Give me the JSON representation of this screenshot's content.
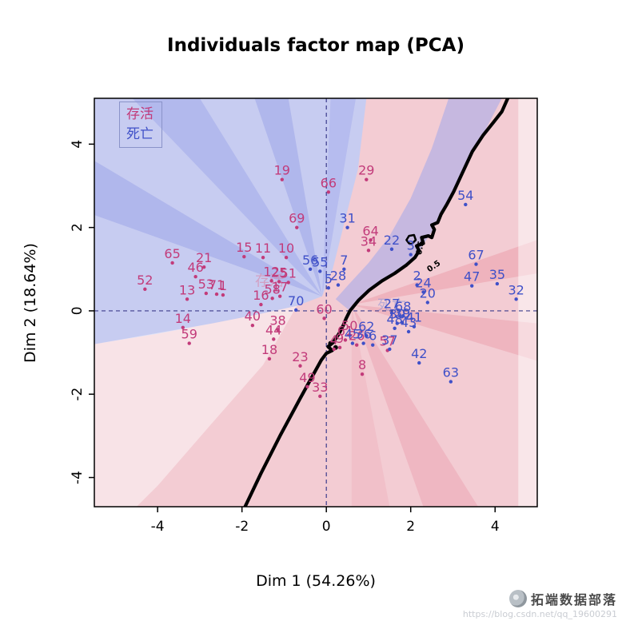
{
  "title": "Individuals factor map (PCA)",
  "axes": {
    "x_label": "Dim 1 (54.26%)",
    "y_label": "Dim 2 (18.64%)",
    "x_ticks": [
      -4,
      -2,
      0,
      2,
      4
    ],
    "y_ticks": [
      -4,
      -2,
      0,
      2,
      4
    ]
  },
  "legend": {
    "items": [
      {
        "label": "存活",
        "color": "#c23b7a"
      },
      {
        "label": "死亡",
        "color": "#3f50c8"
      }
    ]
  },
  "watermark": {
    "brand": "拓端数据部落",
    "url": "https://blog.csdn.net/qq_19600291"
  },
  "chart_data": {
    "type": "scatter",
    "title": "Individuals factor map (PCA)",
    "xlabel": "Dim 1 (54.26%)",
    "ylabel": "Dim 2 (18.64%)",
    "xlim": [
      -5.5,
      5.0
    ],
    "ylim": [
      -4.7,
      5.1
    ],
    "grid": false,
    "plot_background": "#f3ccd3",
    "crosshair_color": "#3c3c8c",
    "boundary_color": "#000000",
    "classes": [
      {
        "name": "存活",
        "color": "#c23b7a"
      },
      {
        "name": "死亡",
        "color": "#3f50c8"
      }
    ],
    "points": [
      {
        "label": "1",
        "x": -2.45,
        "y": 0.38,
        "class": "存活"
      },
      {
        "label": "4",
        "x": 0.18,
        "y": -0.92,
        "class": "存活"
      },
      {
        "label": "8",
        "x": 0.85,
        "y": -1.52,
        "class": "存活"
      },
      {
        "label": "9",
        "x": 0.32,
        "y": -0.88,
        "class": "存活"
      },
      {
        "label": "10",
        "x": -0.95,
        "y": 1.28,
        "class": "存活"
      },
      {
        "label": "11",
        "x": -1.5,
        "y": 1.28,
        "class": "存活"
      },
      {
        "label": "12",
        "x": -1.3,
        "y": 0.72,
        "class": "存活"
      },
      {
        "label": "13",
        "x": -3.3,
        "y": 0.28,
        "class": "存活"
      },
      {
        "label": "14",
        "x": -3.4,
        "y": -0.4,
        "class": "存活"
      },
      {
        "label": "15",
        "x": -1.95,
        "y": 1.3,
        "class": "存活"
      },
      {
        "label": "16",
        "x": -1.55,
        "y": 0.15,
        "class": "存活"
      },
      {
        "label": "17",
        "x": -1.1,
        "y": 0.35,
        "class": "存活"
      },
      {
        "label": "18",
        "x": -1.35,
        "y": -1.15,
        "class": "存活"
      },
      {
        "label": "19",
        "x": -1.05,
        "y": 3.15,
        "class": "存活"
      },
      {
        "label": "21",
        "x": -2.9,
        "y": 1.05,
        "class": "存活"
      },
      {
        "label": "23",
        "x": -0.62,
        "y": -1.32,
        "class": "存活"
      },
      {
        "label": "25",
        "x": -1.12,
        "y": 0.7,
        "class": "存活"
      },
      {
        "label": "26",
        "x": 0.72,
        "y": -0.82,
        "class": "存活"
      },
      {
        "label": "29",
        "x": 0.95,
        "y": 3.15,
        "class": "存活"
      },
      {
        "label": "33",
        "x": -0.15,
        "y": -2.05,
        "class": "存活"
      },
      {
        "label": "34",
        "x": 1.0,
        "y": 1.45,
        "class": "存活"
      },
      {
        "label": "38",
        "x": -1.15,
        "y": -0.45,
        "class": "存活"
      },
      {
        "label": "40",
        "x": -1.75,
        "y": -0.35,
        "class": "存活"
      },
      {
        "label": "44",
        "x": -1.25,
        "y": -0.68,
        "class": "存活"
      },
      {
        "label": "46",
        "x": -3.1,
        "y": 0.82,
        "class": "存活"
      },
      {
        "label": "49",
        "x": -0.45,
        "y": -1.82,
        "class": "存活"
      },
      {
        "label": "50",
        "x": 0.55,
        "y": -0.58,
        "class": "存活"
      },
      {
        "label": "51",
        "x": -0.9,
        "y": 0.68,
        "class": "存活"
      },
      {
        "label": "52",
        "x": -4.3,
        "y": 0.52,
        "class": "存活"
      },
      {
        "label": "53",
        "x": -2.85,
        "y": 0.42,
        "class": "存活"
      },
      {
        "label": "57",
        "x": 1.45,
        "y": -0.95,
        "class": "存活"
      },
      {
        "label": "58",
        "x": -1.28,
        "y": 0.3,
        "class": "存活"
      },
      {
        "label": "59",
        "x": -3.25,
        "y": -0.78,
        "class": "存活"
      },
      {
        "label": "60",
        "x": -0.05,
        "y": -0.18,
        "class": "存活"
      },
      {
        "label": "61",
        "x": 0.45,
        "y": -0.7,
        "class": "存活"
      },
      {
        "label": "64",
        "x": 1.05,
        "y": 1.7,
        "class": "存活"
      },
      {
        "label": "65",
        "x": -3.65,
        "y": 1.15,
        "class": "存活"
      },
      {
        "label": "66",
        "x": 0.05,
        "y": 2.85,
        "class": "存活"
      },
      {
        "label": "69",
        "x": -0.7,
        "y": 2.0,
        "class": "存活"
      },
      {
        "label": "71",
        "x": -2.6,
        "y": 0.4,
        "class": "存活"
      },
      {
        "label": "2",
        "x": 2.15,
        "y": 0.62,
        "class": "死亡"
      },
      {
        "label": "3",
        "x": 2.0,
        "y": 1.35,
        "class": "死亡"
      },
      {
        "label": "5",
        "x": 0.05,
        "y": 0.55,
        "class": "死亡"
      },
      {
        "label": "6",
        "x": 1.1,
        "y": -0.82,
        "class": "死亡"
      },
      {
        "label": "7",
        "x": 0.42,
        "y": 1.0,
        "class": "死亡"
      },
      {
        "label": "20",
        "x": 2.4,
        "y": 0.2,
        "class": "死亡"
      },
      {
        "label": "22",
        "x": 1.55,
        "y": 1.48,
        "class": "死亡"
      },
      {
        "label": "24",
        "x": 2.3,
        "y": 0.45,
        "class": "死亡"
      },
      {
        "label": "27",
        "x": 1.55,
        "y": -0.05,
        "class": "死亡"
      },
      {
        "label": "28",
        "x": 0.28,
        "y": 0.62,
        "class": "死亡"
      },
      {
        "label": "30",
        "x": 1.68,
        "y": -0.3,
        "class": "死亡"
      },
      {
        "label": "31",
        "x": 0.5,
        "y": 2.0,
        "class": "死亡"
      },
      {
        "label": "32",
        "x": 4.5,
        "y": 0.28,
        "class": "死亡"
      },
      {
        "label": "35",
        "x": 4.05,
        "y": 0.65,
        "class": "死亡"
      },
      {
        "label": "36",
        "x": 0.88,
        "y": -0.78,
        "class": "死亡"
      },
      {
        "label": "37",
        "x": 1.5,
        "y": -0.92,
        "class": "死亡"
      },
      {
        "label": "39",
        "x": 1.8,
        "y": -0.28,
        "class": "死亡"
      },
      {
        "label": "41",
        "x": 2.08,
        "y": -0.38,
        "class": "死亡"
      },
      {
        "label": "42",
        "x": 2.2,
        "y": -1.25,
        "class": "死亡"
      },
      {
        "label": "43",
        "x": 1.95,
        "y": -0.5,
        "class": "死亡"
      },
      {
        "label": "45",
        "x": 0.62,
        "y": -0.78,
        "class": "死亡"
      },
      {
        "label": "47",
        "x": 3.45,
        "y": 0.6,
        "class": "死亡"
      },
      {
        "label": "48",
        "x": 1.62,
        "y": -0.42,
        "class": "死亡"
      },
      {
        "label": "54",
        "x": 3.3,
        "y": 2.55,
        "class": "死亡"
      },
      {
        "label": "55",
        "x": -0.15,
        "y": 0.95,
        "class": "死亡"
      },
      {
        "label": "56",
        "x": -0.38,
        "y": 1.0,
        "class": "死亡"
      },
      {
        "label": "62",
        "x": 0.95,
        "y": -0.6,
        "class": "死亡"
      },
      {
        "label": "63",
        "x": 2.95,
        "y": -1.7,
        "class": "死亡"
      },
      {
        "label": "67",
        "x": 3.55,
        "y": 1.12,
        "class": "死亡"
      },
      {
        "label": "68",
        "x": 1.82,
        "y": -0.12,
        "class": "死亡"
      },
      {
        "label": "70",
        "x": -0.72,
        "y": 0.02,
        "class": "死亡"
      }
    ],
    "regions": [
      {
        "name": "blue-main",
        "color": "#c7ccf1",
        "poly": [
          [
            -5.5,
            5.1
          ],
          [
            0.95,
            5.1
          ],
          [
            0.75,
            3.4
          ],
          [
            0.45,
            2.2
          ],
          [
            0.15,
            1.0
          ],
          [
            -0.1,
            0.35
          ],
          [
            -0.7,
            0.12
          ],
          [
            -1.6,
            -0.08
          ],
          [
            -2.7,
            -0.3
          ],
          [
            -4.0,
            -0.55
          ],
          [
            -5.5,
            -0.8
          ]
        ]
      },
      {
        "name": "blue-streak-1",
        "color": "rgba(153,161,232,0.5)",
        "poly": [
          [
            -0.1,
            0.35
          ],
          [
            -5.5,
            2.3
          ],
          [
            -5.5,
            3.6
          ]
        ]
      },
      {
        "name": "blue-streak-2",
        "color": "rgba(153,161,232,0.45)",
        "poly": [
          [
            -0.1,
            0.35
          ],
          [
            -4.6,
            5.1
          ],
          [
            -3.0,
            5.1
          ]
        ]
      },
      {
        "name": "blue-streak-3",
        "color": "rgba(153,161,232,0.5)",
        "poly": [
          [
            -0.1,
            0.35
          ],
          [
            -1.7,
            5.1
          ],
          [
            -0.9,
            5.1
          ]
        ]
      },
      {
        "name": "blue-streak-4",
        "color": "rgba(170,177,238,0.6)",
        "poly": [
          [
            -0.1,
            0.35
          ],
          [
            0.1,
            5.1
          ],
          [
            0.7,
            5.1
          ]
        ]
      },
      {
        "name": "blue-band-boundary",
        "color": "rgba(160,168,235,0.55)",
        "poly": [
          [
            0.56,
            0.0
          ],
          [
            1.02,
            0.5
          ],
          [
            1.62,
            0.9
          ],
          [
            2.1,
            1.28
          ],
          [
            2.5,
            1.9
          ],
          [
            2.86,
            2.56
          ],
          [
            3.3,
            3.5
          ],
          [
            3.8,
            4.4
          ],
          [
            4.16,
            5.1
          ],
          [
            2.9,
            5.1
          ],
          [
            2.5,
            3.9
          ],
          [
            2.0,
            2.7
          ],
          [
            1.5,
            1.8
          ],
          [
            1.0,
            1.15
          ],
          [
            0.5,
            0.6
          ],
          [
            0.22,
            0.28
          ]
        ]
      },
      {
        "name": "pink-streak-1",
        "color": "rgba(235,158,172,0.55)",
        "poly": [
          [
            0.6,
            0.15
          ],
          [
            5.0,
            1.7
          ],
          [
            5.0,
            0.9
          ]
        ]
      },
      {
        "name": "pink-streak-2",
        "color": "rgba(235,158,172,0.5)",
        "poly": [
          [
            0.6,
            0.15
          ],
          [
            5.0,
            -0.3
          ],
          [
            5.0,
            -1.2
          ]
        ]
      },
      {
        "name": "pink-streak-3",
        "color": "rgba(235,158,172,0.45)",
        "poly": [
          [
            0.6,
            0.15
          ],
          [
            3.6,
            -4.7
          ],
          [
            2.3,
            -4.7
          ]
        ]
      },
      {
        "name": "pink-streak-4",
        "color": "rgba(240,180,192,0.5)",
        "poly": [
          [
            0.6,
            0.15
          ],
          [
            1.5,
            -4.7
          ],
          [
            0.6,
            -4.7
          ]
        ]
      },
      {
        "name": "pale-lower-left",
        "color": "rgba(255,255,255,0.45)",
        "poly": [
          [
            -5.5,
            -0.8
          ],
          [
            -2.7,
            -0.3
          ],
          [
            -1.6,
            -0.08
          ],
          [
            -0.7,
            0.12
          ],
          [
            -1.5,
            -1.3
          ],
          [
            -2.8,
            -2.8
          ],
          [
            -4.0,
            -4.2
          ],
          [
            -4.5,
            -4.7
          ],
          [
            -5.5,
            -4.7
          ]
        ]
      },
      {
        "name": "pale-right-strip",
        "color": "rgba(255,255,255,0.5)",
        "poly": [
          [
            4.55,
            5.1
          ],
          [
            5.0,
            5.1
          ],
          [
            5.0,
            -4.7
          ],
          [
            4.55,
            -4.7
          ]
        ]
      }
    ],
    "region_labels": [
      {
        "text": "存活",
        "x": -1.35,
        "y": 0.6,
        "color": "rgba(216,130,165,0.6)"
      },
      {
        "text": "死亡",
        "x": 1.55,
        "y": 0.02,
        "color": "rgba(130,140,215,0.5)"
      }
    ],
    "decision_boundary": {
      "level": "0.5",
      "path": [
        [
          -1.95,
          -4.75
        ],
        [
          -1.55,
          -3.9
        ],
        [
          -1.1,
          -3.0
        ],
        [
          -0.62,
          -2.1
        ],
        [
          -0.32,
          -1.55
        ],
        [
          -0.12,
          -1.18
        ],
        [
          0.0,
          -1.02
        ],
        [
          0.14,
          -0.95
        ],
        [
          0.04,
          -0.86
        ],
        [
          0.16,
          -0.76
        ],
        [
          0.3,
          -0.55
        ],
        [
          0.4,
          -0.35
        ],
        [
          0.47,
          -0.18
        ],
        [
          0.56,
          0.0
        ],
        [
          0.76,
          0.25
        ],
        [
          1.02,
          0.5
        ],
        [
          1.32,
          0.72
        ],
        [
          1.62,
          0.9
        ],
        [
          1.9,
          1.1
        ],
        [
          2.1,
          1.28
        ],
        [
          2.2,
          1.44
        ],
        [
          2.14,
          1.56
        ],
        [
          2.3,
          1.62
        ],
        [
          2.26,
          1.76
        ],
        [
          2.42,
          1.8
        ],
        [
          2.5,
          1.76
        ],
        [
          2.56,
          1.95
        ],
        [
          2.5,
          2.06
        ],
        [
          2.64,
          2.12
        ],
        [
          2.72,
          2.32
        ],
        [
          2.86,
          2.56
        ],
        [
          3.02,
          2.86
        ],
        [
          3.22,
          3.3
        ],
        [
          3.46,
          3.82
        ],
        [
          3.72,
          4.22
        ],
        [
          3.96,
          4.52
        ],
        [
          4.16,
          4.78
        ],
        [
          4.3,
          5.1
        ]
      ],
      "loop": [
        [
          2.02,
          1.6
        ],
        [
          2.12,
          1.7
        ],
        [
          2.08,
          1.82
        ],
        [
          1.96,
          1.8
        ],
        [
          1.9,
          1.7
        ],
        [
          1.96,
          1.62
        ]
      ],
      "dots": [
        [
          0.1,
          -0.78
        ],
        [
          0.22,
          -0.88
        ]
      ]
    },
    "contour_labels": [
      {
        "text": "0.5",
        "x": 2.28,
        "y": 1.5,
        "rotate": -80
      },
      {
        "text": "0.5",
        "x": 2.58,
        "y": 1.02,
        "rotate": -35
      }
    ]
  }
}
